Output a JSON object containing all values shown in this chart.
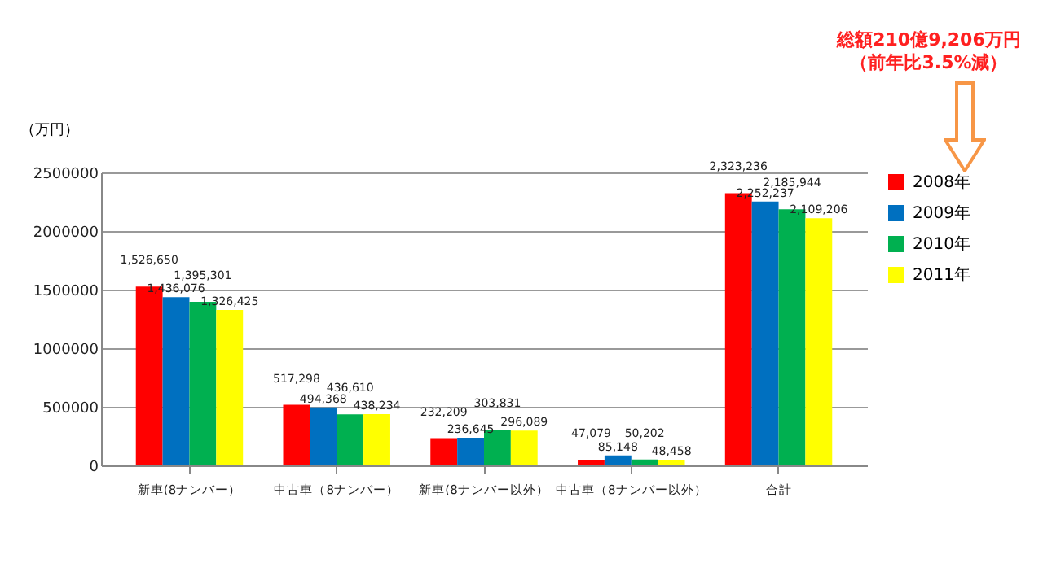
{
  "chart_data": {
    "type": "bar",
    "ylabel": "（万円）",
    "categories": [
      "新車(8ナンバー）",
      "中古車（8ナンバー）",
      "新車(8ナンバー以外）",
      "中古車（8ナンバー以外）",
      "合計"
    ],
    "series": [
      {
        "name": "2008年",
        "color": "#ff0000",
        "values": [
          1526650,
          517298,
          232209,
          47079,
          2323236
        ],
        "value_labels": [
          "1,526,650",
          "517,298",
          "232,209",
          "47,079",
          "2,323,236"
        ]
      },
      {
        "name": "2009年",
        "color": "#0070c0",
        "values": [
          1436076,
          494368,
          236645,
          85148,
          2252237
        ],
        "value_labels": [
          "1,436,076",
          "494,368",
          "236,645",
          "85,148",
          "2,252,237"
        ]
      },
      {
        "name": "2010年",
        "color": "#00b050",
        "values": [
          1395301,
          436610,
          303831,
          50202,
          2185944
        ],
        "value_labels": [
          "1,395,301",
          "436,610",
          "303,831",
          "50,202",
          "2,185,944"
        ]
      },
      {
        "name": "2011年",
        "color": "#ffff00",
        "values": [
          1326425,
          438234,
          296089,
          48458,
          2109206
        ],
        "value_labels": [
          "1,326,425",
          "438,234",
          "296,089",
          "48,458",
          "2,109,206"
        ]
      }
    ],
    "ylim": [
      0,
      2500000
    ],
    "yticks": [
      0,
      500000,
      1000000,
      1500000,
      2000000,
      2500000
    ],
    "grid": "y",
    "legend": "right",
    "annotations": [
      "総額210億9,206万円",
      "（前年比3.5%減）"
    ]
  }
}
